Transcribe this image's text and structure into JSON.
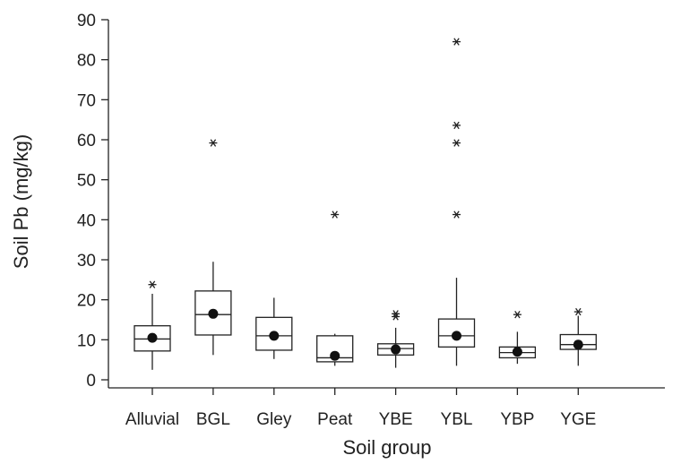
{
  "chart_data": {
    "type": "boxplot",
    "title": "",
    "xlabel": "Soil group",
    "ylabel": "Soil Pb (mg/kg)",
    "ylim": [
      0,
      90
    ],
    "yticks": [
      0,
      10,
      20,
      30,
      40,
      50,
      60,
      70,
      80,
      90
    ],
    "grid": false,
    "categories": [
      "Alluvial",
      "BGL",
      "Gley",
      "Peat",
      "YBE",
      "YBL",
      "YBP",
      "YGE"
    ],
    "series": [
      {
        "category": "Alluvial",
        "whisker_low": 2.5,
        "q1": 7.2,
        "median": 10.2,
        "q3": 13.5,
        "whisker_high": 21.5,
        "mean": 10.5,
        "outliers": [
          23.8
        ]
      },
      {
        "category": "BGL",
        "whisker_low": 6.2,
        "q1": 11.2,
        "median": 16.3,
        "q3": 22.2,
        "whisker_high": 29.5,
        "mean": 16.5,
        "outliers": [
          59.2
        ]
      },
      {
        "category": "Gley",
        "whisker_low": 5.2,
        "q1": 7.4,
        "median": 11.0,
        "q3": 15.6,
        "whisker_high": 20.5,
        "mean": 11.0,
        "outliers": []
      },
      {
        "category": "Peat",
        "whisker_low": 3.5,
        "q1": 4.5,
        "median": 5.5,
        "q3": 11.0,
        "whisker_high": 11.5,
        "mean": 6.0,
        "outliers": [
          41.3
        ]
      },
      {
        "category": "YBE",
        "whisker_low": 3.0,
        "q1": 6.2,
        "median": 7.8,
        "q3": 9.0,
        "whisker_high": 13.0,
        "mean": 7.6,
        "outliers": [
          15.8,
          16.5
        ]
      },
      {
        "category": "YBL",
        "whisker_low": 3.5,
        "q1": 8.2,
        "median": 11.0,
        "q3": 15.2,
        "whisker_high": 25.5,
        "mean": 11.0,
        "outliers": [
          41.3,
          59.2,
          63.6,
          84.5
        ]
      },
      {
        "category": "YBP",
        "whisker_low": 4.0,
        "q1": 5.5,
        "median": 6.8,
        "q3": 8.2,
        "whisker_high": 12.0,
        "mean": 7.0,
        "outliers": [
          16.3
        ]
      },
      {
        "category": "YGE",
        "whisker_low": 3.5,
        "q1": 7.6,
        "median": 8.8,
        "q3": 11.3,
        "whisker_high": 16.0,
        "mean": 8.8,
        "outliers": [
          17.0
        ]
      }
    ]
  }
}
